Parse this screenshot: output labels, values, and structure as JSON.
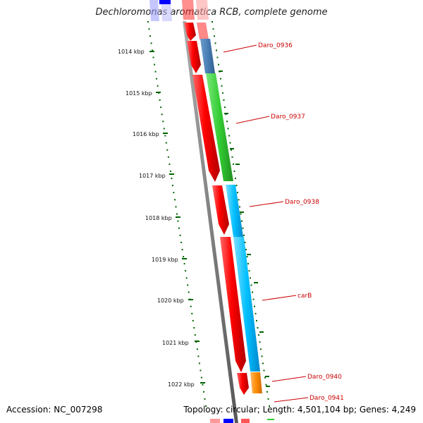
{
  "title": "Dechloromonas aromatica RCB, complete genome",
  "footer": {
    "accession": "Accession: NC_007298",
    "summary": "Topology: circular; Length: 4,501,104 bp; Genes: 4,249"
  },
  "ruler_ticks": [
    "1014 kbp",
    "1015 kbp",
    "1016 kbp",
    "1017 kbp",
    "1018 kbp",
    "1019 kbp",
    "1020 kbp",
    "1021 kbp",
    "1022 kbp"
  ],
  "gene_labels": [
    "Daro_0936",
    "Daro_0937",
    "Daro_0938",
    "carB",
    "Daro_0940",
    "Daro_0941"
  ],
  "colors": {
    "forward_cds": "#ff0000",
    "backbone": "#808080",
    "tick": "#006400",
    "label": "#cc0000",
    "daro_0936": "#4a7fb5",
    "daro_0937": "#33cc33",
    "daro_0938": "#00bfff",
    "carB": "#00bfff",
    "daro_0940": "#ff8c00",
    "daro_0941": "#dd2222"
  }
}
